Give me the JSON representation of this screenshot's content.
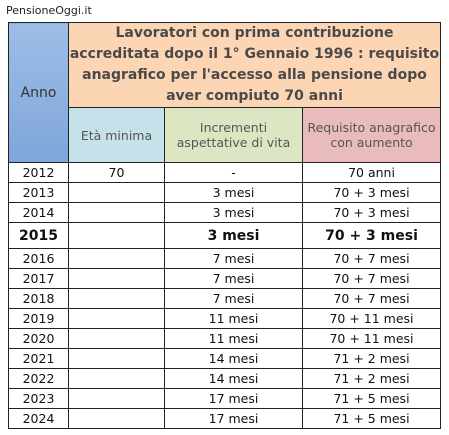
{
  "source": "PensioneOggi.it",
  "header": {
    "anno": "Anno",
    "title": "Lavoratori con prima contribuzione accreditata dopo il 1° Gennaio 1996 : requisito anagrafico per l'accesso alla pensione dopo aver compiuto 70 anni",
    "columns": [
      "Età minima",
      "Incrementi aspettative di vita",
      "Requisito anagrafico con aumento"
    ]
  },
  "table": {
    "rows": [
      {
        "anno": "2012",
        "eta": "70",
        "incremento": "-",
        "requisito": "70 anni"
      },
      {
        "anno": "2013",
        "eta": null,
        "incremento": "3 mesi",
        "requisito": "70 + 3 mesi"
      },
      {
        "anno": "2014",
        "eta": null,
        "incremento": "3 mesi",
        "requisito": "70 + 3 mesi"
      },
      {
        "anno": "2015",
        "eta": null,
        "incremento": "3 mesi",
        "requisito": "70 + 3 mesi",
        "bold": true
      },
      {
        "anno": "2016",
        "eta": null,
        "incremento": "7 mesi",
        "requisito": "70 + 7 mesi"
      },
      {
        "anno": "2017",
        "eta": null,
        "incremento": "7 mesi",
        "requisito": "70 + 7 mesi"
      },
      {
        "anno": "2018",
        "eta": null,
        "incremento": "7 mesi",
        "requisito": "70 + 7 mesi"
      },
      {
        "anno": "2019",
        "eta": null,
        "incremento": "11 mesi",
        "requisito": "70 + 11 mesi"
      },
      {
        "anno": "2020",
        "eta": null,
        "incremento": "11 mesi",
        "requisito": "70 + 11 mesi"
      },
      {
        "anno": "2021",
        "eta": null,
        "incremento": "14 mesi",
        "requisito": "71 + 2 mesi"
      },
      {
        "anno": "2022",
        "eta": null,
        "incremento": "14 mesi",
        "requisito": "71 + 2 mesi"
      },
      {
        "anno": "2023",
        "eta": null,
        "incremento": "17 mesi",
        "requisito": "71 + 5 mesi"
      },
      {
        "anno": "2024",
        "eta": null,
        "incremento": "17 mesi",
        "requisito": "71 + 5 mesi"
      }
    ]
  }
}
